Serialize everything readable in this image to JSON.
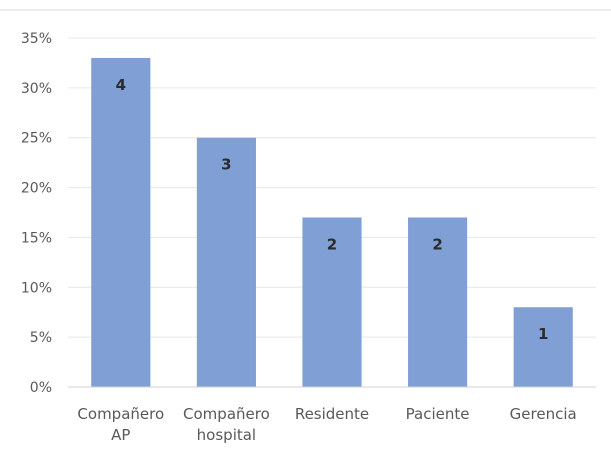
{
  "chart_data": {
    "type": "bar",
    "categories": [
      [
        "Compañero",
        "AP"
      ],
      [
        "Compañero",
        "hospital"
      ],
      [
        "Residente"
      ],
      [
        "Paciente"
      ],
      [
        "Gerencia"
      ]
    ],
    "values": [
      33,
      25,
      17,
      17,
      8
    ],
    "data_labels": [
      "4",
      "3",
      "2",
      "2",
      "1"
    ],
    "y_ticks": [
      "0%",
      "5%",
      "10%",
      "15%",
      "20%",
      "25%",
      "30%",
      "35%"
    ],
    "ylim": [
      0,
      35
    ],
    "y_unit": "%",
    "grid": true,
    "legend": "none",
    "bar_color": "#7f9fd5"
  }
}
